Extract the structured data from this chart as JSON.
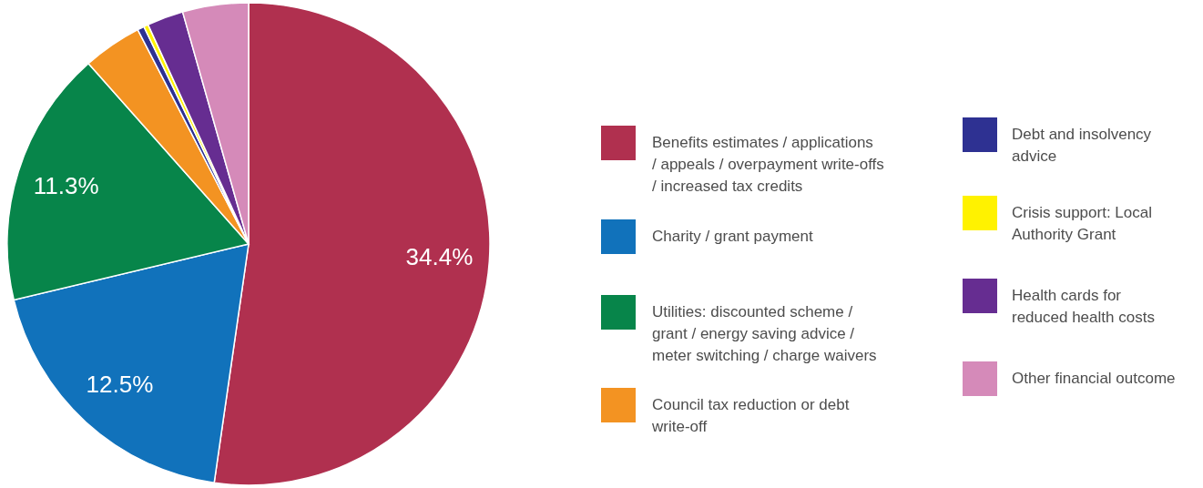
{
  "chart_data": {
    "type": "pie",
    "categories": [
      "Benefits estimates / applications / appeals / overpayment write-offs / increased tax credits",
      "Charity / grant payment",
      "Utilities: discounted scheme / grant / energy saving advice / meter switching / charge waivers",
      "Council tax reduction or debt write-off",
      "Debt and insolvency advice",
      "Crisis support: Local Authority Grant",
      "Health cards for reduced health costs",
      "Other financial outcome"
    ],
    "values": [
      34.4,
      12.5,
      11.3,
      2.6,
      0.3,
      0.2,
      1.6,
      2.9
    ],
    "value_labels": [
      "34.4%",
      "12.5%",
      "11.3%",
      null,
      null,
      null,
      null,
      null
    ],
    "colors": [
      "#b0304f",
      "#1172bb",
      "#07854a",
      "#f39322",
      "#2e3192",
      "#fff200",
      "#662d91",
      "#d58ab9"
    ],
    "legend": "right"
  }
}
